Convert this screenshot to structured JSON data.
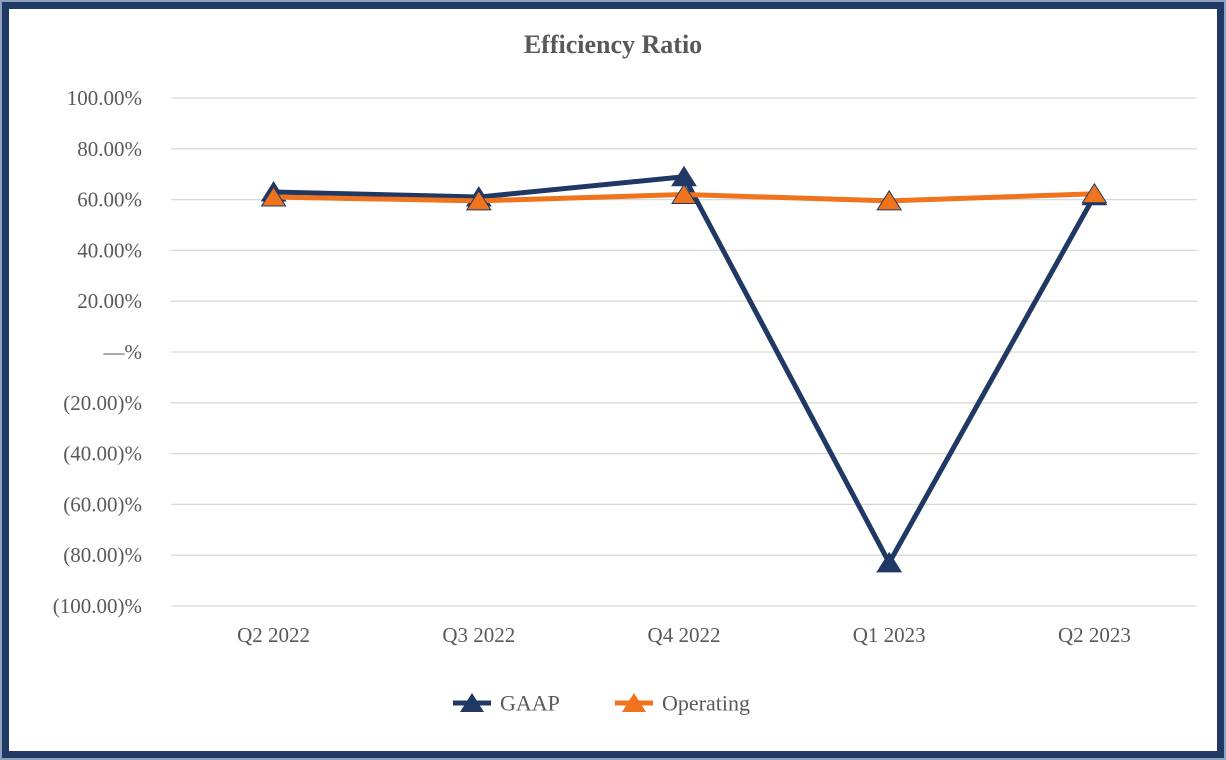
{
  "title": "Efficiency Ratio",
  "chart_data": {
    "type": "line",
    "title": "Efficiency Ratio",
    "categories": [
      "Q2 2022",
      "Q3 2022",
      "Q4 2022",
      "Q1 2023",
      "Q2 2023"
    ],
    "series": [
      {
        "name": "GAAP",
        "color": "#1F3864",
        "values": [
          63.0,
          61.0,
          69.0,
          -83.0,
          61.5
        ]
      },
      {
        "name": "Operating",
        "color": "#F0731E",
        "values": [
          61.0,
          59.5,
          62.0,
          59.5,
          62.3
        ]
      }
    ],
    "xlabel": "",
    "ylabel": "",
    "ylim": [
      -100,
      100
    ],
    "ytick_step": 20,
    "ytick_labels": [
      "100.00%",
      "80.00%",
      "60.00%",
      "40.00%",
      "20.00%",
      "—%",
      "(20.00)%",
      "(40.00)%",
      "(60.00)%",
      "(80.00)%",
      "(100.00)%"
    ],
    "grid": true,
    "marker": "triangle",
    "legend_position": "bottom-center"
  },
  "colors": {
    "frame_outer": "#8EA2BC",
    "frame_inner": "#1F3864",
    "gridline": "#D9D9D9",
    "text": "#595959",
    "background": "#FFFFFF",
    "gaap": "#1F3864",
    "operating": "#F0731E"
  }
}
